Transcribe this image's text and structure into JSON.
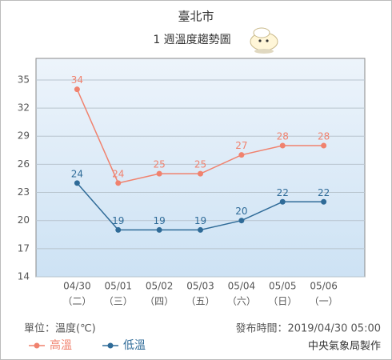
{
  "chart_data": {
    "type": "line",
    "title": "臺北市",
    "subtitle": "1 週溫度趨勢圖",
    "categories": [
      "04/30",
      "05/01",
      "05/02",
      "05/03",
      "05/04",
      "05/05",
      "05/06"
    ],
    "weekdays": [
      "（二）",
      "（三）",
      "（四）",
      "（五）",
      "（六）",
      "（日）",
      "（一）"
    ],
    "series": [
      {
        "name": "高溫",
        "color": "#f0826e",
        "values": [
          34,
          24,
          25,
          25,
          27,
          28,
          28
        ]
      },
      {
        "name": "低溫",
        "color": "#2f6b98",
        "values": [
          24,
          19,
          19,
          19,
          20,
          22,
          22
        ]
      }
    ],
    "ylim": [
      14,
      37.3
    ],
    "yticks": [
      14,
      17,
      20,
      23,
      26,
      29,
      32,
      35
    ],
    "grid": true,
    "unit_label": "單位：溫度(℃)",
    "issued": "發布時間：2019/04/30 05:00",
    "credit": "中央氣象局製作"
  }
}
